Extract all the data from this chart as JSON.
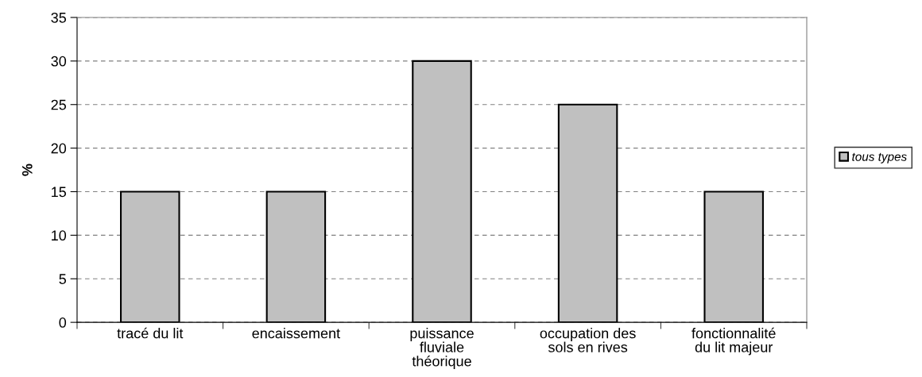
{
  "chart_data": {
    "type": "bar",
    "ylabel": "%",
    "categories": [
      "tracé du lit",
      "encaissement",
      "puissance fluviale théorique",
      "occupation des sols en rives",
      "fonctionnalité du lit majeur"
    ],
    "series": [
      {
        "name": "tous types",
        "color": "#c0c0c0",
        "values": [
          15,
          15,
          30,
          25,
          15
        ]
      }
    ],
    "ylim": [
      0,
      35
    ],
    "yticks": [
      0,
      5,
      10,
      15,
      20,
      25,
      30,
      35
    ],
    "grid": "y",
    "legend": "right"
  }
}
